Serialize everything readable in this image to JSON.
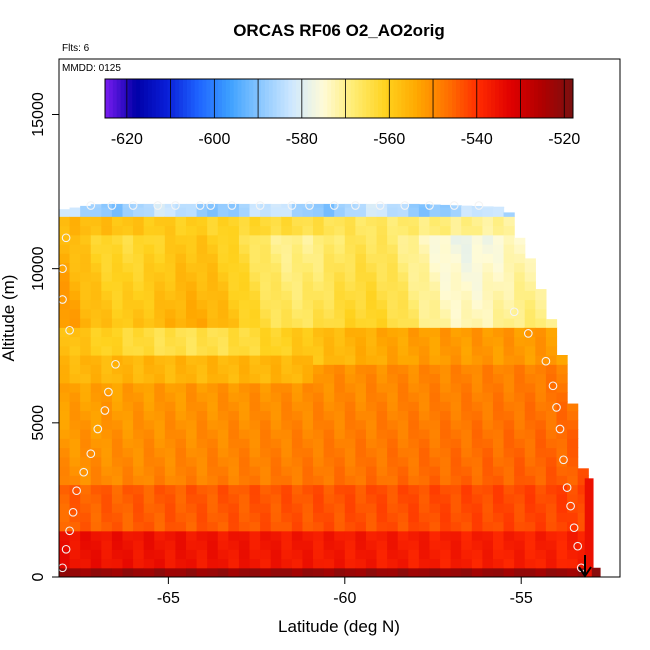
{
  "chart_data": {
    "type": "heatmap",
    "title": "ORCAS RF06 O2_AO2orig",
    "xlabel": "Latitude (deg N)",
    "ylabel": "Altitude (m)",
    "annotations": {
      "flights": "Flts: 6",
      "date": "MMDD: 0125"
    },
    "xlim": [
      -68.1,
      -52.2
    ],
    "ylim": [
      0,
      16800
    ],
    "x_ticks": [
      -65,
      -60,
      -55
    ],
    "x_tick_labels": [
      "-65",
      "-60",
      "-55"
    ],
    "y_ticks": [
      0,
      5000,
      10000,
      15000
    ],
    "y_tick_labels": [
      "0",
      "5000",
      "10000",
      "15000"
    ],
    "colorbar": {
      "range": [
        -625,
        -518
      ],
      "ticks": [
        -620,
        -600,
        -580,
        -560,
        -540,
        -520
      ],
      "tick_labels": [
        "-620",
        "-600",
        "-580",
        "-560",
        "-540",
        "-520"
      ],
      "colors": [
        "#7a1cf0",
        "#0000a8",
        "#0a1fd8",
        "#1e64ff",
        "#3da0ff",
        "#8cc8ff",
        "#cfe8ff",
        "#fffbd6",
        "#ffec70",
        "#ffd21e",
        "#ffa800",
        "#ff7000",
        "#ff2a00",
        "#e00000",
        "#b00000",
        "#7a1010"
      ]
    },
    "altitude_top_profile": [
      [
        -68.1,
        11900
      ],
      [
        -67.0,
        12100
      ],
      [
        -58.0,
        12100
      ],
      [
        -55.4,
        12000
      ],
      [
        -55.2,
        11300
      ],
      [
        -54.8,
        10500
      ],
      [
        -54.5,
        9500
      ],
      [
        -54.1,
        8200
      ],
      [
        -53.8,
        7000
      ],
      [
        -53.6,
        6000
      ],
      [
        -53.4,
        4500
      ],
      [
        -53.2,
        3200
      ],
      [
        -53.0,
        300
      ]
    ],
    "profile_points_south": [
      [
        -68.0,
        300
      ],
      [
        -67.9,
        900
      ],
      [
        -67.8,
        1500
      ],
      [
        -67.7,
        2100
      ],
      [
        -67.6,
        2800
      ],
      [
        -67.4,
        3400
      ],
      [
        -67.2,
        4000
      ],
      [
        -67.0,
        4800
      ],
      [
        -66.8,
        5400
      ],
      [
        -66.7,
        6000
      ],
      [
        -66.5,
        6900
      ],
      [
        -67.8,
        8000
      ],
      [
        -68.0,
        9000
      ],
      [
        -68.0,
        10000
      ],
      [
        -67.9,
        11000
      ]
    ],
    "profile_points_north": [
      [
        -53.3,
        300
      ],
      [
        -53.4,
        1000
      ],
      [
        -53.5,
        1600
      ],
      [
        -53.6,
        2300
      ],
      [
        -53.7,
        2900
      ],
      [
        -53.8,
        3800
      ],
      [
        -53.9,
        4800
      ],
      [
        -54.0,
        5500
      ],
      [
        -54.1,
        6200
      ],
      [
        -54.3,
        7000
      ],
      [
        -54.8,
        7900
      ],
      [
        -55.2,
        8600
      ]
    ],
    "profile_points_top": [
      [
        -67.2,
        12050
      ],
      [
        -66.6,
        12050
      ],
      [
        -66.0,
        12050
      ],
      [
        -65.3,
        12050
      ],
      [
        -64.8,
        12050
      ],
      [
        -64.1,
        12050
      ],
      [
        -63.8,
        12050
      ],
      [
        -63.2,
        12050
      ],
      [
        -62.4,
        12050
      ],
      [
        -61.5,
        12050
      ],
      [
        -61.0,
        12050
      ],
      [
        -60.3,
        12050
      ],
      [
        -59.7,
        12050
      ],
      [
        -59.0,
        12050
      ],
      [
        -58.3,
        12050
      ],
      [
        -57.6,
        12050
      ],
      [
        -56.9,
        12050
      ],
      [
        -56.2,
        12050
      ]
    ]
  }
}
